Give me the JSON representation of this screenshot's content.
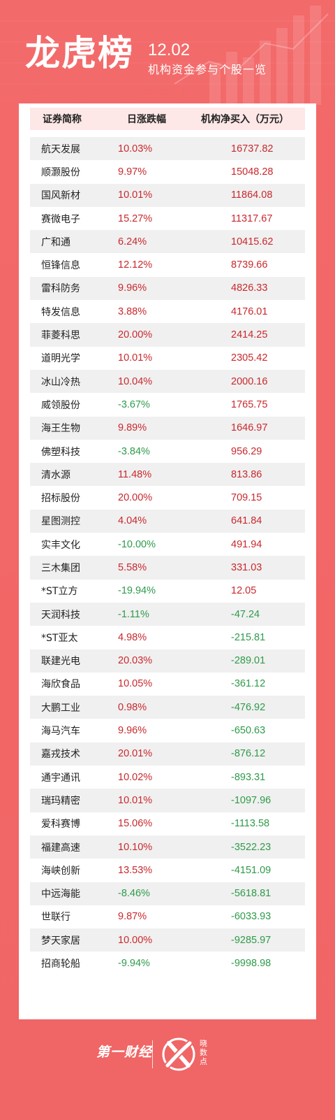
{
  "header": {
    "title": "龙虎榜",
    "date": "12.02",
    "subtitle": "机构资金参与个股一览"
  },
  "table": {
    "columns": [
      "证券简称",
      "日涨跌幅",
      "机构净买入（万元）"
    ],
    "rows": [
      {
        "name": "航天发展",
        "change": "10.03%",
        "net": "16737.82"
      },
      {
        "name": "顺灏股份",
        "change": "9.97%",
        "net": "15048.28"
      },
      {
        "name": "国风新材",
        "change": "10.01%",
        "net": "11864.08"
      },
      {
        "name": "赛微电子",
        "change": "15.27%",
        "net": "11317.67"
      },
      {
        "name": "广和通",
        "change": "6.24%",
        "net": "10415.62"
      },
      {
        "name": "恒锋信息",
        "change": "12.12%",
        "net": "8739.66"
      },
      {
        "name": "雷科防务",
        "change": "9.96%",
        "net": "4826.33"
      },
      {
        "name": "特发信息",
        "change": "3.88%",
        "net": "4176.01"
      },
      {
        "name": "菲菱科思",
        "change": "20.00%",
        "net": "2414.25"
      },
      {
        "name": "道明光学",
        "change": "10.01%",
        "net": "2305.42"
      },
      {
        "name": "冰山冷热",
        "change": "10.04%",
        "net": "2000.16"
      },
      {
        "name": "威领股份",
        "change": "-3.67%",
        "net": "1765.75"
      },
      {
        "name": "海王生物",
        "change": "9.89%",
        "net": "1646.97"
      },
      {
        "name": "佛塑科技",
        "change": "-3.84%",
        "net": "956.29"
      },
      {
        "name": "清水源",
        "change": "11.48%",
        "net": "813.86"
      },
      {
        "name": "招标股份",
        "change": "20.00%",
        "net": "709.15"
      },
      {
        "name": "星图测控",
        "change": "4.04%",
        "net": "641.84"
      },
      {
        "name": "实丰文化",
        "change": "-10.00%",
        "net": "491.94"
      },
      {
        "name": "三木集团",
        "change": "5.58%",
        "net": "331.03"
      },
      {
        "name": "*ST立方",
        "change": "-19.94%",
        "net": "12.05"
      },
      {
        "name": "天润科技",
        "change": "-1.11%",
        "net": "-47.24"
      },
      {
        "name": "*ST亚太",
        "change": "4.98%",
        "net": "-215.81"
      },
      {
        "name": "联建光电",
        "change": "20.03%",
        "net": "-289.01"
      },
      {
        "name": "海欣食品",
        "change": "10.05%",
        "net": "-361.12"
      },
      {
        "name": "大鹏工业",
        "change": "0.98%",
        "net": "-476.92"
      },
      {
        "name": "海马汽车",
        "change": "9.96%",
        "net": "-650.63"
      },
      {
        "name": "嘉戎技术",
        "change": "20.01%",
        "net": "-876.12"
      },
      {
        "name": "通宇通讯",
        "change": "10.02%",
        "net": "-893.31"
      },
      {
        "name": "瑞玛精密",
        "change": "10.01%",
        "net": "-1097.96"
      },
      {
        "name": "爱科赛博",
        "change": "15.06%",
        "net": "-1113.58"
      },
      {
        "name": "福建高速",
        "change": "10.10%",
        "net": "-3522.23"
      },
      {
        "name": "海峡创新",
        "change": "13.53%",
        "net": "-4151.09"
      },
      {
        "name": "中远海能",
        "change": "-8.46%",
        "net": "-5618.81"
      },
      {
        "name": "世联行",
        "change": "9.87%",
        "net": "-6033.93"
      },
      {
        "name": "梦天家居",
        "change": "10.00%",
        "net": "-9285.97"
      },
      {
        "name": "招商轮船",
        "change": "-9.94%",
        "net": "-9998.98"
      }
    ]
  },
  "footer": {
    "brand_left": "第一财经",
    "brand_right": "晓数点"
  },
  "colors": {
    "background": "#f26868",
    "positive": "#c9282d",
    "negative": "#2e9b4a",
    "header_row": "#fde7e7",
    "stripe": "#f0f0f0"
  }
}
